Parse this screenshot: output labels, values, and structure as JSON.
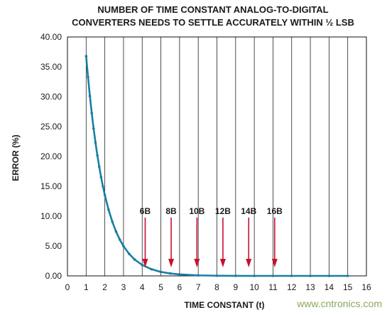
{
  "chart_data": {
    "type": "line",
    "title_line1": "NUMBER OF TIME CONSTANT ANALOG-TO-DIGITAL",
    "title_line2": "CONVERTERS NEEDS TO SETTLE ACCURATELY WITHIN ½ LSB",
    "xlabel": "TIME CONSTANT (t)",
    "ylabel": "ERROR (%)",
    "xlim": [
      0,
      16
    ],
    "ylim": [
      0,
      40
    ],
    "x_ticks": [
      "0",
      "1",
      "2",
      "3",
      "4",
      "5",
      "6",
      "7",
      "8",
      "9",
      "10",
      "11",
      "12",
      "13",
      "14",
      "15",
      "16"
    ],
    "y_ticks": [
      "0.00",
      "5.00",
      "10.00",
      "15.00",
      "20.00",
      "25.00",
      "30.00",
      "35.00",
      "40.00"
    ],
    "grid": "vertical",
    "line_color": "#1a7fa0",
    "marker_color": "#c8102e",
    "series": [
      {
        "x": [
          1.0,
          1.1,
          1.2,
          1.3,
          1.4,
          1.5,
          1.6,
          1.7,
          1.8,
          1.9,
          2.0,
          2.2,
          2.4,
          2.6,
          2.8,
          3.0,
          3.3,
          3.6,
          4.0,
          4.5,
          5.0,
          5.5,
          6.0,
          7.0,
          8.0,
          9.0,
          10.0,
          11.0,
          12.0,
          13.0,
          14.0,
          15.0
        ],
        "y": [
          36.79,
          33.29,
          30.12,
          27.25,
          24.66,
          22.31,
          20.19,
          18.27,
          16.53,
          14.96,
          13.53,
          11.08,
          9.07,
          7.43,
          6.08,
          4.98,
          3.69,
          2.73,
          1.83,
          1.11,
          0.67,
          0.41,
          0.25,
          0.09,
          0.03,
          0.01,
          0.0,
          0.0,
          0.0,
          0.0,
          0.0,
          0.0
        ]
      }
    ],
    "markers": [
      {
        "label": "6B",
        "x": 4.16
      },
      {
        "label": "8B",
        "x": 5.55
      },
      {
        "label": "10B",
        "x": 6.93
      },
      {
        "label": "12B",
        "x": 8.32
      },
      {
        "label": "14B",
        "x": 9.7
      },
      {
        "label": "16B",
        "x": 11.09
      }
    ]
  },
  "watermark": "www.cntronics.com"
}
